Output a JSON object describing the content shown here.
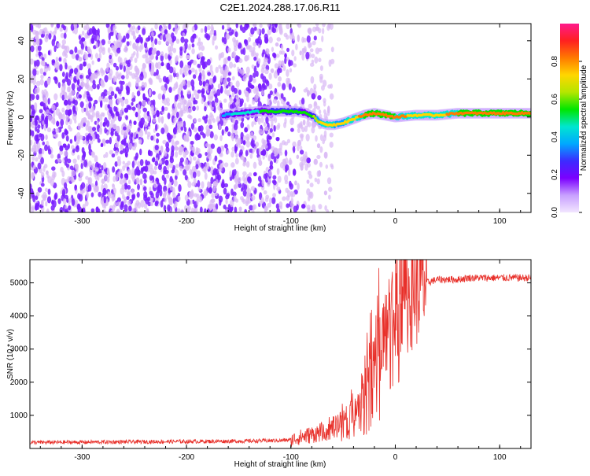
{
  "figure_title": "C2E1.2024.288.17.06.R11",
  "colors": {
    "snr_line": "#e8302a",
    "spectrum_scatter": "#7a1fff",
    "spectrum_scatter_light": "#d9b8f5",
    "colorbar_stops": [
      "#f2e6ff",
      "#c8a0ff",
      "#7b00ff",
      "#3c2bff",
      "#00a8ff",
      "#00e6d0",
      "#00e600",
      "#b4e600",
      "#ffd600",
      "#ff7a00",
      "#ff2020",
      "#ff1a8c"
    ]
  },
  "chart_data": [
    {
      "type": "heatmap",
      "title": "",
      "xlabel": "Height of straight line (km)",
      "ylabel": "Frequency (Hz)",
      "xlim": [
        -350,
        130
      ],
      "ylim": [
        -50,
        49
      ],
      "xticks": [
        "-300",
        "-200",
        "-100",
        "0",
        "100"
      ],
      "xtick_values": [
        -300,
        -200,
        -100,
        0,
        100
      ],
      "yticks": [
        "40",
        "20",
        "0",
        "-20",
        "-40"
      ],
      "ytick_values": [
        40,
        20,
        0,
        -20,
        -40
      ],
      "colorbar_label": "Normalized spectral amplitude",
      "colorbar_range": [
        0,
        1
      ],
      "colorbar_ticks": [
        "0.0",
        "0.2",
        "0.4",
        "0.6",
        "0.8"
      ],
      "colorbar_tick_values": [
        0.0,
        0.2,
        0.4,
        0.6,
        0.8
      ],
      "noise_region_x": [
        -350,
        -80
      ],
      "signal_ridge": {
        "x": [
          -165,
          -150,
          -130,
          -110,
          -95,
          -85,
          -78,
          -72,
          -65,
          -58,
          -50,
          -40,
          -30,
          -20,
          -10,
          0,
          20,
          40,
          60,
          80,
          100,
          130
        ],
        "frequency": [
          1,
          2,
          3,
          3,
          3,
          2,
          0,
          -3,
          -4,
          -4,
          -3,
          -1,
          1,
          2,
          1,
          0,
          1,
          1,
          2,
          2,
          2,
          2
        ],
        "amplitude": [
          0.35,
          0.45,
          0.5,
          0.55,
          0.55,
          0.5,
          0.6,
          0.7,
          0.75,
          0.7,
          0.7,
          0.75,
          0.8,
          0.85,
          0.8,
          0.8,
          0.75,
          0.75,
          0.8,
          0.85,
          0.85,
          0.8
        ]
      }
    },
    {
      "type": "line",
      "title": "",
      "xlabel": "Height of straight line (km)",
      "ylabel": "SNR (10 * v/v)",
      "xlim": [
        -350,
        130
      ],
      "ylim": [
        0,
        5700
      ],
      "xticks": [
        "-300",
        "-200",
        "-100",
        "0",
        "100"
      ],
      "xtick_values": [
        -300,
        -200,
        -100,
        0,
        100
      ],
      "yticks": [
        "1000",
        "2000",
        "3000",
        "4000",
        "5000"
      ],
      "ytick_values": [
        1000,
        2000,
        3000,
        4000,
        5000
      ],
      "series": [
        {
          "x": [
            -350,
            -300,
            -250,
            -200,
            -150,
            -110,
            -100,
            -90,
            -80,
            -70,
            -60,
            -55,
            -50,
            -45,
            -40,
            -35,
            -30,
            -25,
            -20,
            -15,
            -10,
            -5,
            0,
            5,
            10,
            15,
            20,
            25,
            30,
            35,
            40,
            50,
            60,
            70,
            80,
            90,
            100,
            110,
            120,
            130
          ],
          "y": [
            180,
            190,
            200,
            210,
            220,
            240,
            260,
            350,
            420,
            500,
            600,
            700,
            800,
            900,
            1100,
            1400,
            1800,
            2300,
            2800,
            3200,
            3500,
            3800,
            4100,
            4300,
            4500,
            4700,
            4850,
            4950,
            5000,
            5050,
            5100,
            5100,
            5100,
            5150,
            5150,
            5150,
            5150,
            5150,
            5150,
            5150
          ]
        }
      ]
    }
  ]
}
